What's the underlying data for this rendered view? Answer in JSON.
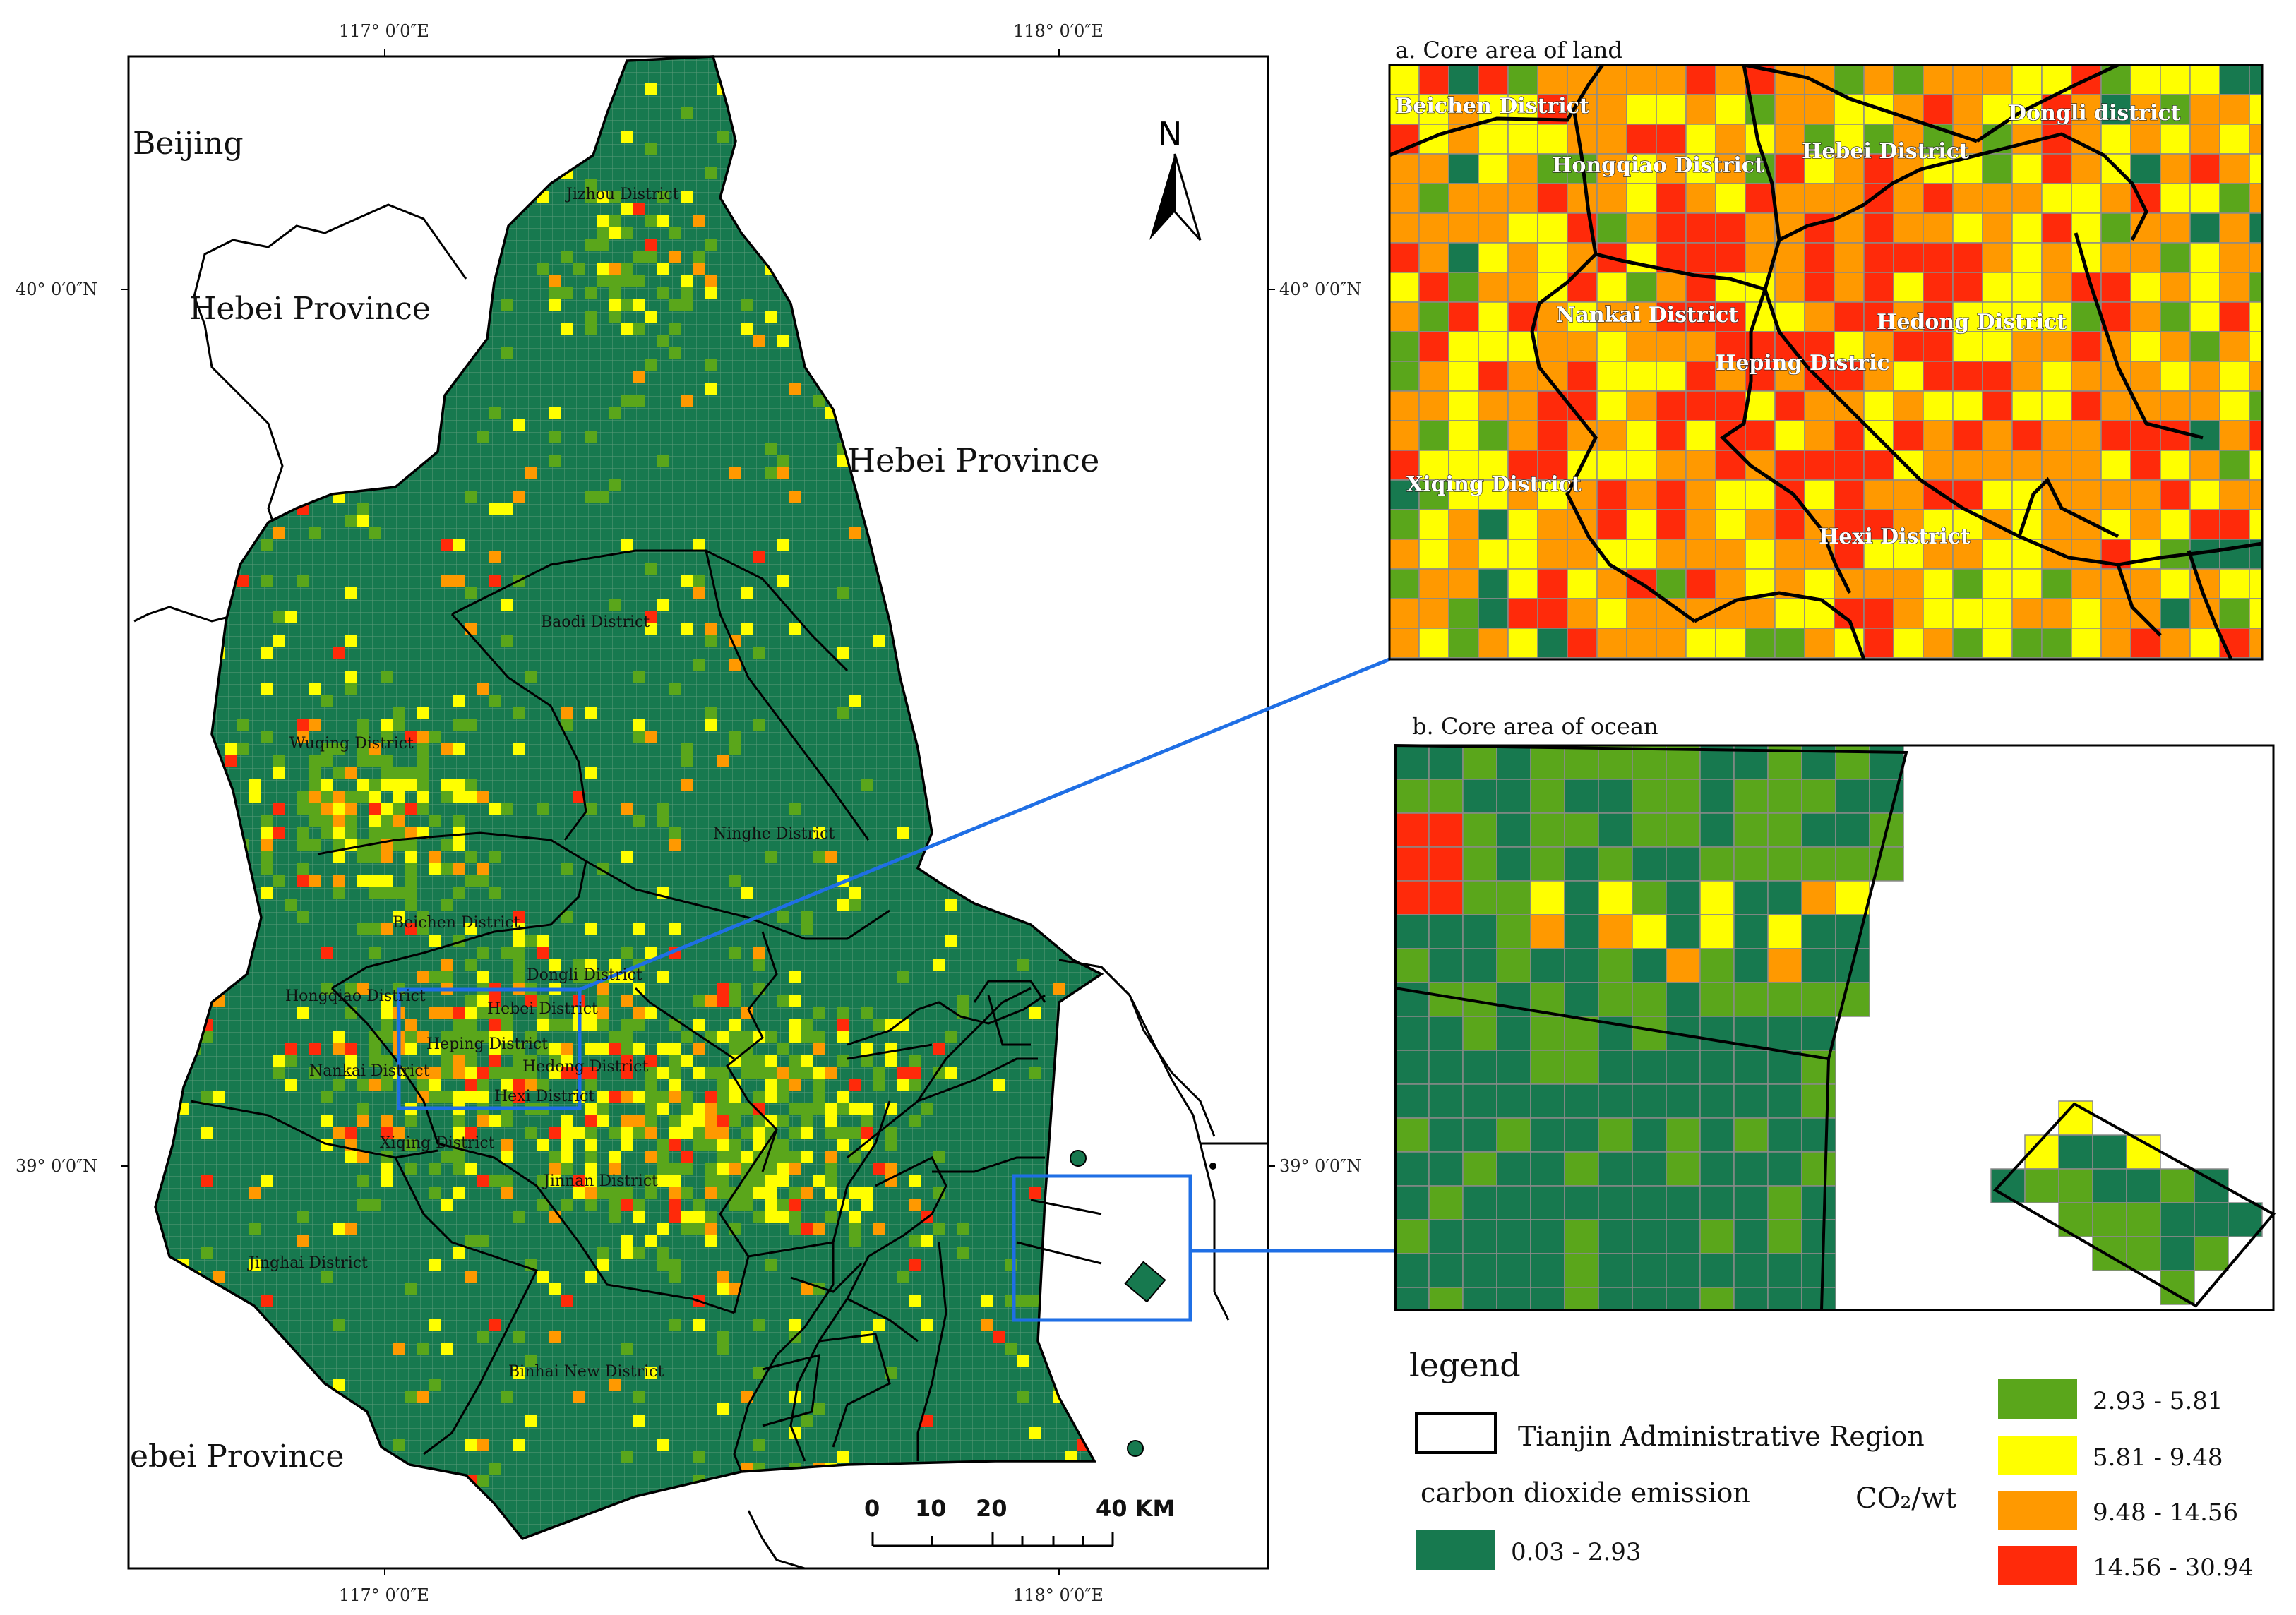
{
  "coords": {
    "lon1": "117° 0′0″E",
    "lon2": "118° 0′0″E",
    "lat1": "40° 0′0″N",
    "lat2": "39° 0′0″N"
  },
  "places": {
    "beijing": "Beijing",
    "hebei_nw": "Hebei Province",
    "hebei_ne": "Hebei Province",
    "hebei_sw": "ebei Province"
  },
  "north_label": "N",
  "districts": {
    "jizhou": "Jizhou District",
    "baodi": "Baodi District",
    "wuqing": "Wuqing District",
    "ninghe": "Ninghe District",
    "beichen": "Beichen District",
    "dongli": "Dongli District",
    "hongqiao": "Hongqiao District",
    "hebei": "Hebei District",
    "heping": "Heping District",
    "nankai": "Nankai District",
    "hedong": "Hedong District",
    "hexi": "Hexi District",
    "xiqing": "Xiqing District",
    "jinnan": "Jinnan District",
    "jinghai": "Jinghai District",
    "binhai": "Binhai New District"
  },
  "inset_a": {
    "title": "a. Core area of land",
    "labels": {
      "beichen": "Beichen District",
      "dongli": "Dongli district",
      "hongqiao": "Hongqiao District",
      "hebei": "Hebei District",
      "nankai": "Nankai District",
      "hedong": "Hedong District",
      "heping": "Heping Distric",
      "xiqing": "Xiqing District",
      "hexi": "Hexi District"
    }
  },
  "inset_b": {
    "title": "b. Core area of ocean"
  },
  "scale_bar": {
    "labels": [
      "0",
      "10",
      "20",
      "40 KM"
    ]
  },
  "legend": {
    "title": "legend",
    "boundary_label": "Tianjin Administrative Region",
    "emission_label": "carbon dioxide emission",
    "unit": "CO₂/wt",
    "classes": [
      {
        "range": "0.03 - 2.93",
        "color": "#17794f"
      },
      {
        "range": "2.93 - 5.81",
        "color": "#5aa61b"
      },
      {
        "range": "5.81 - 9.48",
        "color": "#ffff00"
      },
      {
        "range": "9.48 - 14.56",
        "color": "#ff9900"
      },
      {
        "range": "14.56 - 30.94",
        "color": "#ff2a0a"
      }
    ]
  },
  "colors": {
    "boundary": "#000000",
    "highlight": "#1f6fe5",
    "grid": "#8a8a8a"
  }
}
